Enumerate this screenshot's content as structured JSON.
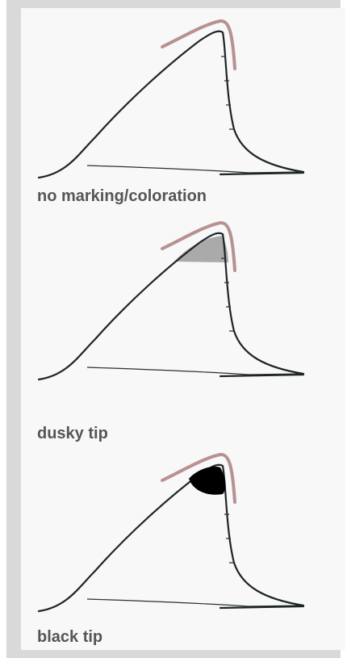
{
  "items": [
    {
      "label": "no marking/coloration"
    },
    {
      "label": "dusky tip"
    },
    {
      "label": "black tip"
    }
  ]
}
